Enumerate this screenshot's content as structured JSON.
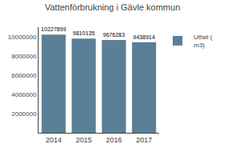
{
  "chart_data": {
    "type": "bar",
    "title": "Vattenförbrukning i Gävle kommun",
    "categories": [
      "2014",
      "2015",
      "2016",
      "2017"
    ],
    "series": [
      {
        "name": "Utfall (\nm3)",
        "color": "#5b7f96",
        "values": [
          10227899,
          9810135,
          9676283,
          9438914
        ]
      }
    ],
    "ylim": [
      0,
      11000000
    ],
    "yticks": [
      2000000,
      4000000,
      6000000,
      8000000,
      10000000
    ],
    "grid": false,
    "legend": "upper right",
    "data_labels": true
  }
}
